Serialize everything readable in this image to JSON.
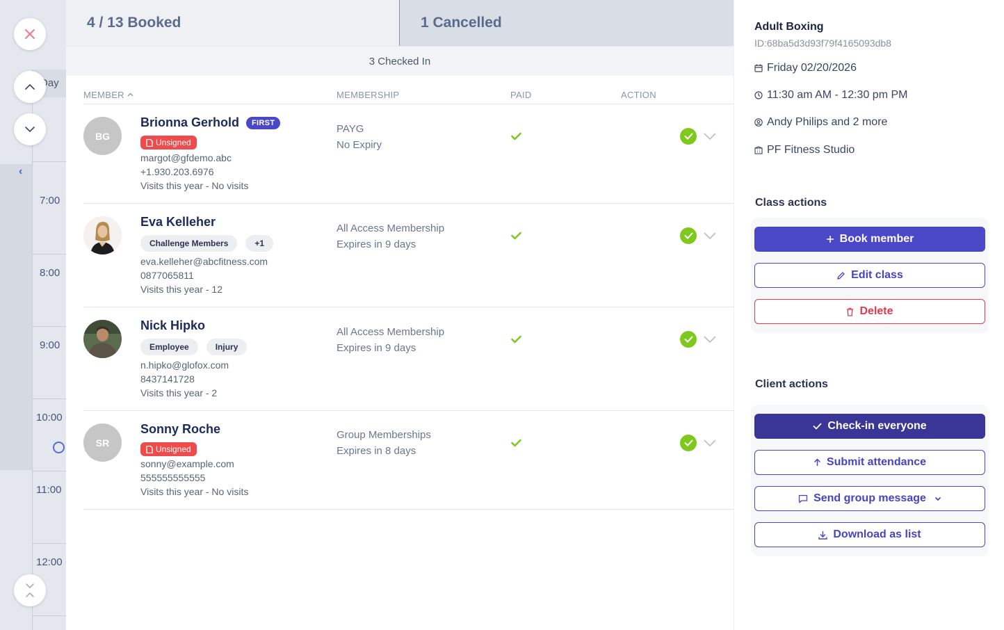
{
  "calendar_strip": {
    "day_label": "Day",
    "times": [
      "7:00",
      "8:00",
      "9:00",
      "10:00",
      "11:00",
      "12:00"
    ]
  },
  "tabs": {
    "booked": "4 / 13 Booked",
    "cancelled": "1 Cancelled"
  },
  "checked_in": "3 Checked In",
  "table": {
    "headers": {
      "member": "MEMBER",
      "membership": "MEMBERSHIP",
      "paid": "PAID",
      "action": "ACTION"
    },
    "rows": [
      {
        "initials": "BG",
        "name": "Brionna Gerhold",
        "first_badge": "FIRST",
        "unsigned": "Unsigned",
        "email": "margot@gfdemo.abc",
        "phone": "+1.930.203.6976",
        "visits": "Visits this year - No visits",
        "membership": "PAYG",
        "expiry": "No Expiry"
      },
      {
        "name": "Eva Kelleher",
        "tags": [
          "Challenge Members",
          "+1"
        ],
        "email": "eva.kelleher@abcfitness.com",
        "phone": "0877065811",
        "visits": "Visits this year - 12",
        "membership": "All Access Membership",
        "expiry": "Expires in 9 days"
      },
      {
        "name": "Nick Hipko",
        "tags": [
          "Employee",
          "Injury"
        ],
        "email": "n.hipko@glofox.com",
        "phone": "8437141728",
        "visits": "Visits this year - 2",
        "membership": "All Access Membership",
        "expiry": "Expires in 9 days"
      },
      {
        "initials": "SR",
        "name": "Sonny Roche",
        "unsigned": "Unsigned",
        "email": "sonny@example.com",
        "phone": "555555555555",
        "visits": "Visits this year - No visits",
        "membership": "Group Memberships",
        "expiry": "Expires in 8 days"
      }
    ]
  },
  "class_info": {
    "title": "Adult Boxing",
    "id": "ID:68ba5d3d93f79f4165093db8",
    "date": "Friday 02/20/2026",
    "time": "11:30 am AM - 12:30 pm PM",
    "trainers": "Andy Philips and 2 more",
    "location": "PF Fitness Studio"
  },
  "class_actions": {
    "title": "Class actions",
    "book": "Book member",
    "edit": "Edit class",
    "delete": "Delete"
  },
  "client_actions": {
    "title": "Client actions",
    "checkin": "Check-in everyone",
    "submit": "Submit attendance",
    "message": "Send group message",
    "download": "Download as list"
  },
  "colors": {
    "brand": "#4b48c8",
    "brand_dark": "#3a3697",
    "danger": "#e03a4e",
    "success": "#7fc91f",
    "unsigned": "#ee4c4c"
  }
}
